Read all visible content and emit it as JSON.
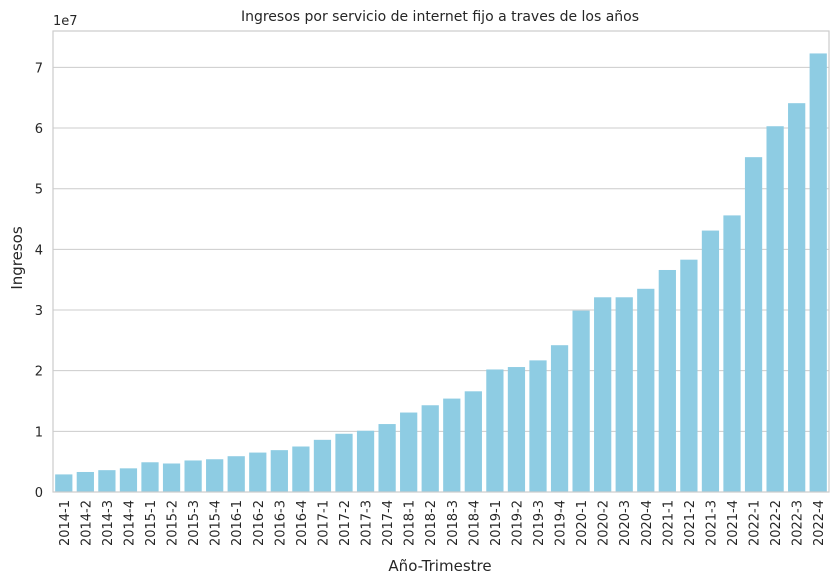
{
  "chart_data": {
    "type": "bar",
    "title": "Ingresos por servicio de internet fijo a traves de los años",
    "xlabel": "Año-Trimestre",
    "ylabel": "Ingresos",
    "y_offset_label": "1e7",
    "ylim": [
      0,
      76000000
    ],
    "yticks": [
      0,
      10000000,
      20000000,
      30000000,
      40000000,
      50000000,
      60000000,
      70000000
    ],
    "ytick_labels": [
      "0",
      "1",
      "2",
      "3",
      "4",
      "5",
      "6",
      "7"
    ],
    "grid": "horizontal",
    "bar_color": "#8ecce3",
    "categories": [
      "2014-1",
      "2014-2",
      "2014-3",
      "2014-4",
      "2015-1",
      "2015-2",
      "2015-3",
      "2015-4",
      "2016-1",
      "2016-2",
      "2016-3",
      "2016-4",
      "2017-1",
      "2017-2",
      "2017-3",
      "2017-4",
      "2018-1",
      "2018-2",
      "2018-3",
      "2018-4",
      "2019-1",
      "2019-2",
      "2019-3",
      "2019-4",
      "2020-1",
      "2020-2",
      "2020-3",
      "2020-4",
      "2021-1",
      "2021-2",
      "2021-3",
      "2021-4",
      "2022-1",
      "2022-2",
      "2022-3",
      "2022-4"
    ],
    "values": [
      2900000,
      3300000,
      3600000,
      3900000,
      4900000,
      4700000,
      5200000,
      5400000,
      5900000,
      6500000,
      6900000,
      7500000,
      8600000,
      9600000,
      10100000,
      11200000,
      13100000,
      14300000,
      15400000,
      16600000,
      20200000,
      20600000,
      21700000,
      24200000,
      29900000,
      32100000,
      32100000,
      33500000,
      36600000,
      38300000,
      43100000,
      45600000,
      55200000,
      60300000,
      64100000,
      72300000
    ]
  }
}
